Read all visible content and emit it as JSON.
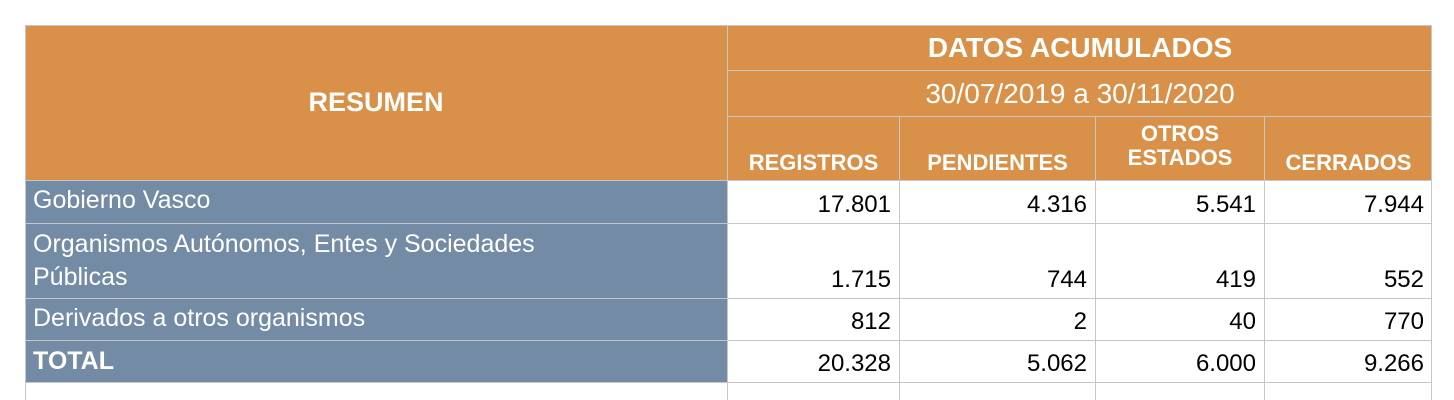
{
  "header": {
    "resumen": "RESUMEN",
    "datos": "DATOS ACUMULADOS",
    "range": "30/07/2019 a 30/11/2020",
    "columns": {
      "registros": "REGISTROS",
      "pendientes": "PENDIENTES",
      "otros_line1": "OTROS",
      "otros_line2": "ESTADOS",
      "cerrados": "CERRADOS"
    }
  },
  "rows": [
    {
      "label": "Gobierno Vasco",
      "registros": "17.801",
      "pendientes": "4.316",
      "otros": "5.541",
      "cerrados": "7.944"
    },
    {
      "label_line1": "Organismos Autónomos, Entes y Sociedades",
      "label_line2": "Públicas",
      "registros": "1.715",
      "pendientes": "744",
      "otros": "419",
      "cerrados": "552"
    },
    {
      "label": "Derivados a otros organismos",
      "registros": "812",
      "pendientes": "2",
      "otros": "40",
      "cerrados": "770"
    },
    {
      "label": "TOTAL",
      "registros": "20.328",
      "pendientes": "5.062",
      "otros": "6.000",
      "cerrados": "9.266"
    }
  ],
  "colors": {
    "header_bg": "#d99149",
    "label_bg": "#738ba4",
    "header_text": "#ffffff"
  }
}
